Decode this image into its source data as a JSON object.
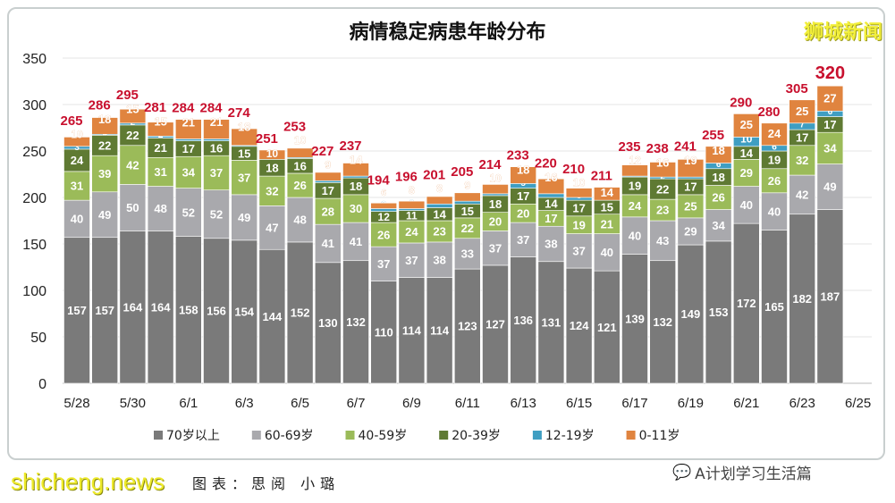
{
  "chart_data": {
    "type": "bar",
    "stacked": true,
    "title": "病情稳定病患年龄分布",
    "categories": [
      "5/28",
      "5/29",
      "5/30",
      "5/31",
      "6/1",
      "6/2",
      "6/3",
      "6/4",
      "6/5",
      "6/6",
      "6/7",
      "6/8",
      "6/9",
      "6/10",
      "6/11",
      "6/12",
      "6/13",
      "6/14",
      "6/15",
      "6/16",
      "6/17",
      "6/18",
      "6/19",
      "6/20",
      "6/21",
      "6/22",
      "6/23",
      "6/24"
    ],
    "x_tick_labels": [
      "5/28",
      "5/30",
      "6/1",
      "6/3",
      "6/5",
      "6/7",
      "6/9",
      "6/11",
      "6/13",
      "6/15",
      "6/17",
      "6/19",
      "6/21",
      "6/23",
      "6/25"
    ],
    "y_ticks": [
      0,
      50,
      100,
      150,
      200,
      250,
      300,
      350
    ],
    "ylim": [
      0,
      350
    ],
    "grid": true,
    "legend_position": "bottom",
    "series": [
      {
        "name": "70岁以上",
        "color": "#7a7a7a",
        "values": [
          157,
          157,
          164,
          164,
          158,
          156,
          154,
          144,
          152,
          130,
          132,
          110,
          114,
          114,
          123,
          127,
          136,
          131,
          124,
          121,
          139,
          132,
          149,
          153,
          172,
          165,
          182,
          187
        ]
      },
      {
        "name": "60-69岁",
        "color": "#a9a9ad",
        "values": [
          40,
          49,
          50,
          48,
          52,
          52,
          49,
          47,
          48,
          41,
          41,
          37,
          37,
          38,
          33,
          37,
          37,
          38,
          37,
          40,
          40,
          43,
          29,
          34,
          40,
          40,
          42,
          49
        ]
      },
      {
        "name": "40-59岁",
        "color": "#9bbb59",
        "values": [
          31,
          39,
          42,
          31,
          34,
          37,
          37,
          32,
          26,
          28,
          30,
          26,
          24,
          23,
          22,
          20,
          20,
          17,
          19,
          21,
          24,
          23,
          25,
          26,
          29,
          26,
          32,
          34
        ]
      },
      {
        "name": "20-39岁",
        "color": "#5f7a33",
        "values": [
          24,
          22,
          22,
          21,
          17,
          16,
          15,
          18,
          16,
          17,
          18,
          12,
          11,
          14,
          15,
          18,
          17,
          14,
          17,
          15,
          19,
          22,
          17,
          18,
          14,
          19,
          17,
          17
        ]
      },
      {
        "name": "12-19岁",
        "color": "#3f9ec2",
        "values": [
          3,
          1,
          2,
          2,
          2,
          2,
          1,
          0,
          1,
          2,
          2,
          3,
          2,
          4,
          3,
          2,
          5,
          4,
          3,
          0,
          1,
          2,
          2,
          6,
          10,
          6,
          7,
          6
        ]
      },
      {
        "name": "0-11岁",
        "color": "#e0843f",
        "values": [
          10,
          18,
          15,
          15,
          21,
          21,
          18,
          10,
          10,
          9,
          14,
          6,
          8,
          8,
          9,
          10,
          18,
          16,
          10,
          14,
          12,
          16,
          19,
          18,
          25,
          24,
          25,
          27
        ]
      }
    ],
    "totals": [
      265,
      286,
      295,
      281,
      284,
      284,
      274,
      251,
      253,
      227,
      237,
      194,
      196,
      201,
      205,
      214,
      233,
      220,
      210,
      211,
      235,
      238,
      241,
      255,
      290,
      280,
      305,
      320
    ],
    "total_color": "#c8102e"
  },
  "watermark_top": "狮城新闻",
  "watermark_bottom": "shicheng.news",
  "credit": "图表：思阅 小璐",
  "wechat_account": "A计划学习生活篇"
}
